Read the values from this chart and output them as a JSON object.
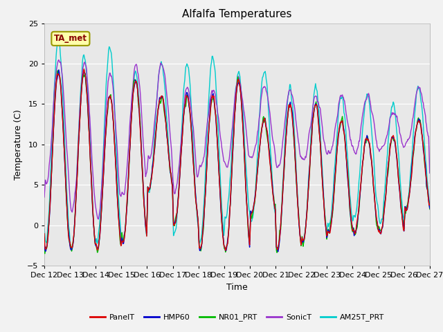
{
  "title": "Alfalfa Temperatures",
  "xlabel": "Time",
  "ylabel": "Temperature (C)",
  "ylim": [
    -5,
    25
  ],
  "annotation": "TA_met",
  "plot_bg": "#e8e8e8",
  "fig_bg": "#f2f2f2",
  "series_colors": {
    "PanelT": "#dd0000",
    "HMP60": "#0000cc",
    "NR01_PRT": "#00bb00",
    "SonicT": "#9933cc",
    "AM25T_PRT": "#00cccc"
  },
  "xtick_labels": [
    "Dec 12",
    "Dec 13",
    "Dec 14",
    "Dec 15",
    "Dec 16",
    "Dec 17",
    "Dec 18",
    "Dec 19",
    "Dec 20",
    "Dec 21",
    "Dec 22",
    "Dec 23",
    "Dec 24",
    "Dec 25",
    "Dec 26",
    "Dec 27"
  ],
  "n_days": 15,
  "pts_per_day": 48
}
